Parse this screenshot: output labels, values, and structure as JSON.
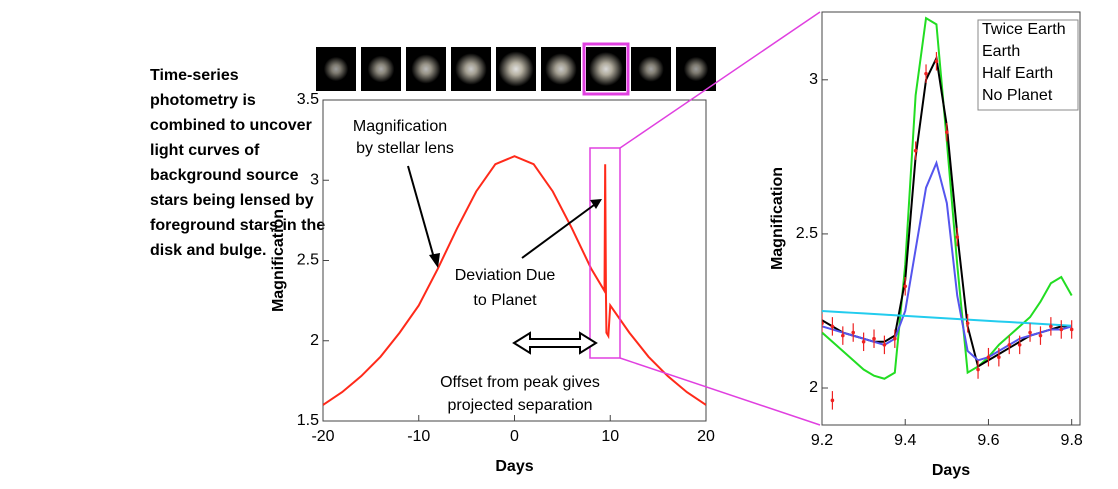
{
  "description": [
    "Time-series",
    "photometry is",
    "combined to uncover",
    "light curves of",
    "background source",
    "stars being lensed by",
    "foreground stars in the",
    "disk and bulge."
  ],
  "chart_data": [
    {
      "type": "line",
      "xlabel": "Days",
      "ylabel": "Magnification",
      "xlim": [
        -20,
        20
      ],
      "ylim": [
        1.5,
        3.5
      ],
      "xticks": [
        -20,
        -10,
        0,
        10,
        20
      ],
      "yticks": [
        1.5,
        2,
        2.5,
        3,
        3.5
      ],
      "annotations": [
        "Magnification",
        "by stellar lens",
        "Deviation Due",
        "to Planet",
        "Offset from peak gives",
        "projected separation"
      ],
      "x": [
        -20,
        -18,
        -16,
        -14,
        -12,
        -10,
        -8,
        -6,
        -4,
        -2,
        0,
        2,
        4,
        6,
        8,
        9.2,
        9.4,
        9.47,
        9.55,
        9.6,
        9.8,
        10,
        12,
        14,
        16,
        18,
        20
      ],
      "series": [
        {
          "color": "#ff2a1a",
          "values": [
            1.6,
            1.68,
            1.78,
            1.9,
            2.05,
            2.22,
            2.45,
            2.7,
            2.93,
            3.1,
            3.15,
            3.1,
            2.93,
            2.7,
            2.45,
            2.33,
            2.31,
            3.1,
            2.3,
            2.05,
            2.03,
            2.22,
            2.05,
            1.9,
            1.78,
            1.68,
            1.6
          ]
        }
      ]
    },
    {
      "type": "line",
      "xlabel": "Days",
      "ylabel": "Magnification",
      "xlim": [
        9.2,
        9.82
      ],
      "ylim": [
        1.88,
        3.22
      ],
      "xticks": [
        9.2,
        9.4,
        9.6,
        9.8
      ],
      "yticks": [
        2,
        2.5,
        3
      ],
      "x": [
        9.2,
        9.225,
        9.25,
        9.275,
        9.3,
        9.325,
        9.35,
        9.375,
        9.4,
        9.425,
        9.45,
        9.475,
        9.5,
        9.525,
        9.55,
        9.575,
        9.6,
        9.625,
        9.65,
        9.675,
        9.7,
        9.725,
        9.75,
        9.775,
        9.8
      ],
      "series": [
        {
          "name": "Twice Earth",
          "color": "#22dd22",
          "values": [
            2.18,
            2.15,
            2.12,
            2.09,
            2.06,
            2.04,
            2.03,
            2.05,
            2.4,
            2.95,
            3.2,
            3.18,
            2.8,
            2.4,
            2.05,
            2.07,
            2.1,
            2.14,
            2.17,
            2.2,
            2.23,
            2.28,
            2.34,
            2.36,
            2.3
          ]
        },
        {
          "name": "Earth",
          "color": "#000000",
          "values": [
            2.22,
            2.2,
            2.18,
            2.17,
            2.16,
            2.15,
            2.15,
            2.17,
            2.35,
            2.75,
            3.0,
            3.07,
            2.85,
            2.5,
            2.2,
            2.07,
            2.09,
            2.11,
            2.13,
            2.15,
            2.17,
            2.18,
            2.19,
            2.2,
            2.2
          ]
        },
        {
          "name": "Half Earth",
          "color": "#5555ee",
          "values": [
            2.2,
            2.19,
            2.18,
            2.17,
            2.16,
            2.15,
            2.14,
            2.16,
            2.25,
            2.45,
            2.65,
            2.73,
            2.6,
            2.3,
            2.12,
            2.09,
            2.1,
            2.12,
            2.14,
            2.16,
            2.17,
            2.18,
            2.19,
            2.19,
            2.2
          ]
        },
        {
          "name": "No Planet",
          "color": "#22ccee",
          "values": [
            2.25,
            2.248,
            2.246,
            2.244,
            2.242,
            2.24,
            2.238,
            2.236,
            2.234,
            2.232,
            2.23,
            2.228,
            2.226,
            2.224,
            2.222,
            2.22,
            2.218,
            2.216,
            2.214,
            2.212,
            2.21,
            2.208,
            2.206,
            2.204,
            2.202
          ]
        }
      ],
      "points": {
        "color": "#ee2222",
        "x": [
          9.2,
          9.225,
          9.25,
          9.275,
          9.3,
          9.325,
          9.35,
          9.375,
          9.4,
          9.425,
          9.45,
          9.475,
          9.5,
          9.525,
          9.55,
          9.575,
          9.6,
          9.625,
          9.65,
          9.675,
          9.7,
          9.725,
          9.75,
          9.775,
          9.8,
          9.225
        ],
        "values": [
          2.21,
          2.2,
          2.17,
          2.18,
          2.15,
          2.16,
          2.14,
          2.16,
          2.33,
          2.77,
          3.02,
          3.06,
          2.83,
          2.49,
          2.21,
          2.06,
          2.1,
          2.1,
          2.14,
          2.14,
          2.18,
          2.17,
          2.2,
          2.19,
          2.19,
          1.96
        ],
        "errors": [
          0.03,
          0.03,
          0.03,
          0.03,
          0.03,
          0.03,
          0.03,
          0.03,
          0.03,
          0.03,
          0.03,
          0.03,
          0.03,
          0.03,
          0.03,
          0.03,
          0.03,
          0.03,
          0.03,
          0.03,
          0.03,
          0.03,
          0.03,
          0.03,
          0.03,
          0.03
        ]
      }
    }
  ]
}
